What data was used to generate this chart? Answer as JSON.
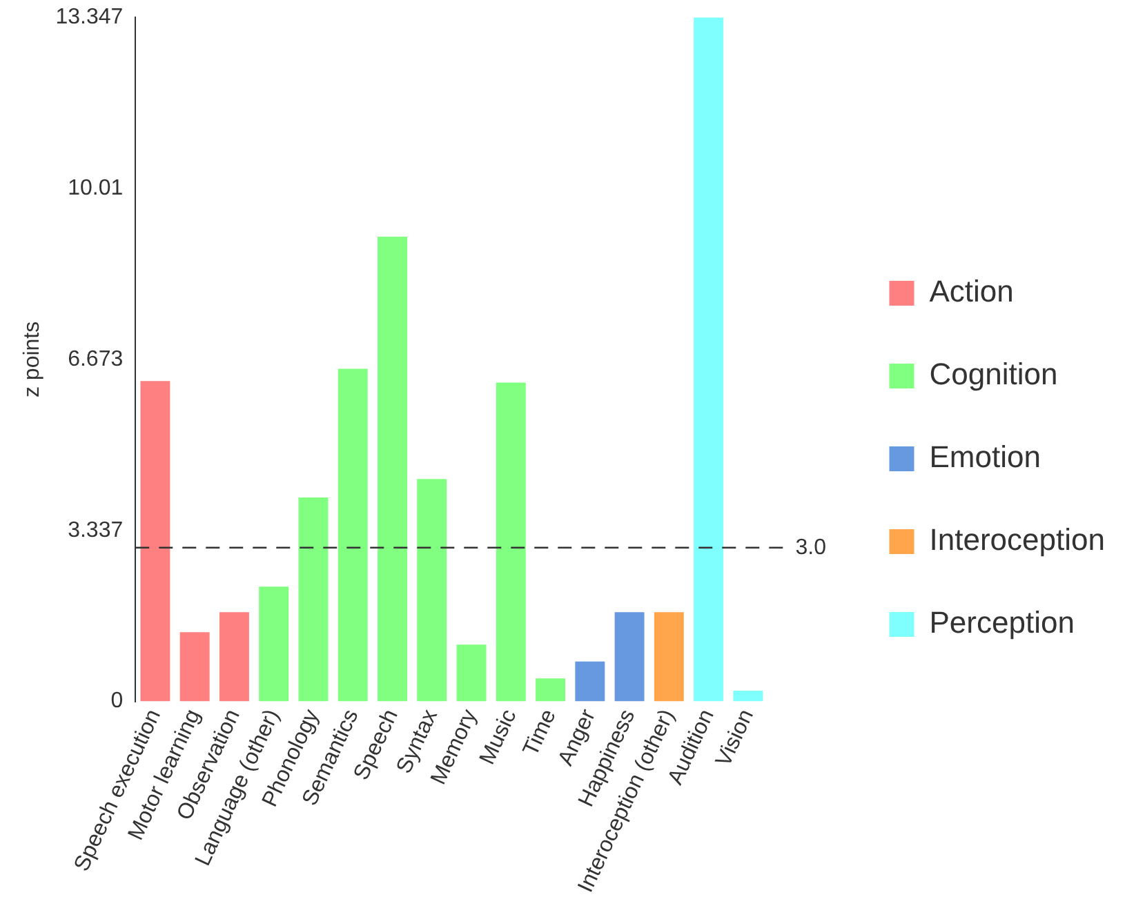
{
  "chart_data": {
    "type": "bar",
    "ylabel": "z points",
    "categories": [
      "Speech execution",
      "Motor learning",
      "Observation",
      "Language (other)",
      "Phonology",
      "Semantics",
      "Speech",
      "Syntax",
      "Memory",
      "Music",
      "Time",
      "Anger",
      "Happiness",
      "Interoception (other)",
      "Audition",
      "Vision"
    ],
    "series": [
      {
        "name": "Action",
        "color": "#ff8080",
        "values": [
          6.25,
          1.35,
          1.74,
          null,
          null,
          null,
          null,
          null,
          null,
          null,
          null,
          null,
          null,
          null,
          null,
          null
        ]
      },
      {
        "name": "Cognition",
        "color": "#80ff80",
        "values": [
          null,
          null,
          null,
          2.24,
          3.98,
          6.49,
          9.07,
          4.34,
          1.11,
          6.22,
          0.45,
          null,
          null,
          null,
          null,
          null
        ]
      },
      {
        "name": "Emotion",
        "color": "#6699e0",
        "values": [
          null,
          null,
          null,
          null,
          null,
          null,
          null,
          null,
          null,
          null,
          null,
          0.78,
          1.74,
          null,
          null,
          null
        ]
      },
      {
        "name": "Interoception",
        "color": "#ffa64d",
        "values": [
          null,
          null,
          null,
          null,
          null,
          null,
          null,
          null,
          null,
          null,
          null,
          null,
          null,
          1.74,
          null,
          null
        ]
      },
      {
        "name": "Perception",
        "color": "#80ffff",
        "values": [
          null,
          null,
          null,
          null,
          null,
          null,
          null,
          null,
          null,
          null,
          null,
          null,
          null,
          null,
          13.347,
          0.21
        ]
      }
    ],
    "ylim": [
      0,
      13.347
    ],
    "yticks": [
      0,
      3.337,
      6.673,
      10.01,
      13.347
    ],
    "grid": false,
    "legend": "right",
    "ref_lines": [
      {
        "axis": "y",
        "value": 3.0,
        "label": "3.0",
        "color": "#333333",
        "line_style": "dashed"
      }
    ]
  }
}
